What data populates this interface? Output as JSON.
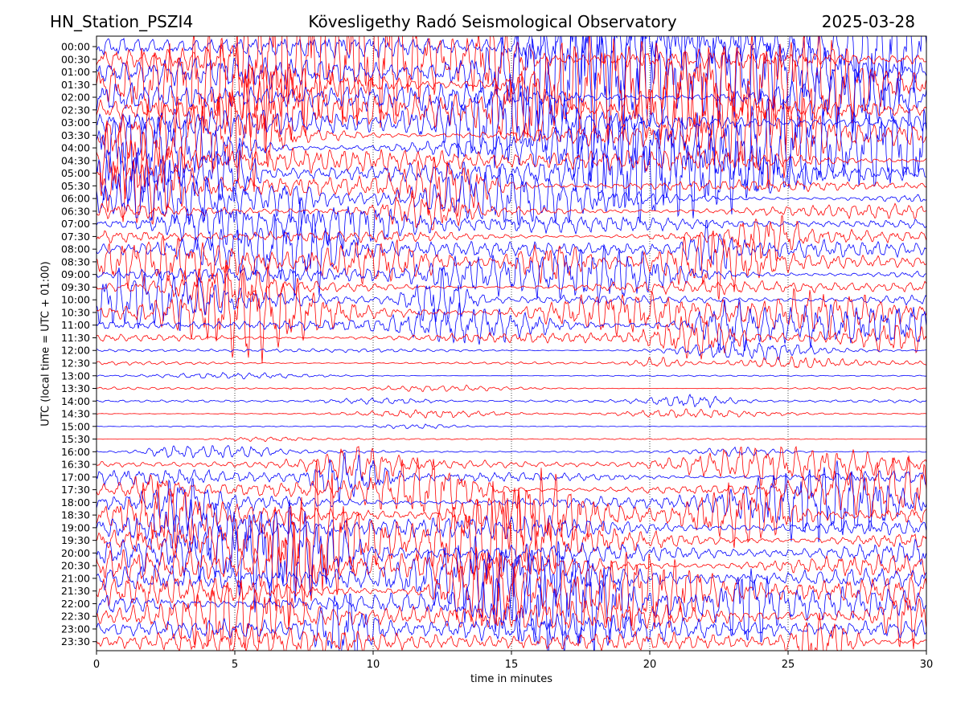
{
  "header": {
    "station": "HN_Station_PSZI4",
    "observatory": "Kövesligethy Radó Seismological Observatory",
    "date": "2025-03-28"
  },
  "chart_data": {
    "type": "line",
    "title": "Kövesligethy Radó Seismological Observatory",
    "xlabel": "time in minutes",
    "ylabel": "UTC (local time = UTC + 01:00)",
    "xlim": [
      0,
      30
    ],
    "xticks": [
      "0",
      "5",
      "10",
      "15",
      "20",
      "25",
      "30"
    ],
    "x_gridlines": [
      5,
      10,
      15,
      20,
      25
    ],
    "row_labels": [
      "00:00",
      "00:30",
      "01:00",
      "01:30",
      "02:00",
      "02:30",
      "03:00",
      "03:30",
      "04:00",
      "04:30",
      "05:00",
      "05:30",
      "06:00",
      "06:30",
      "07:00",
      "07:30",
      "08:00",
      "08:30",
      "09:00",
      "09:30",
      "10:00",
      "10:30",
      "11:00",
      "11:30",
      "12:00",
      "12:30",
      "13:00",
      "13:30",
      "14:00",
      "14:30",
      "15:00",
      "15:30",
      "16:00",
      "16:30",
      "17:00",
      "17:30",
      "18:00",
      "18:30",
      "19:00",
      "19:30",
      "20:00",
      "20:30",
      "21:00",
      "21:30",
      "22:00",
      "22:30",
      "23:00",
      "23:30"
    ],
    "colors": [
      "#0000ff",
      "#ff0000"
    ],
    "relative_amplitude": [
      1.0,
      1.0,
      0.95,
      1.0,
      0.95,
      0.9,
      0.85,
      0.85,
      0.8,
      0.75,
      0.65,
      0.6,
      0.5,
      0.45,
      0.5,
      0.5,
      0.55,
      0.55,
      0.5,
      0.5,
      0.45,
      0.45,
      0.4,
      0.35,
      0.12,
      0.12,
      0.06,
      0.08,
      0.1,
      0.05,
      0.03,
      0.05,
      0.1,
      0.3,
      0.45,
      0.5,
      0.55,
      0.65,
      0.75,
      0.9,
      1.0,
      1.0,
      1.0,
      1.0,
      1.0,
      0.9,
      0.85,
      0.75
    ]
  }
}
